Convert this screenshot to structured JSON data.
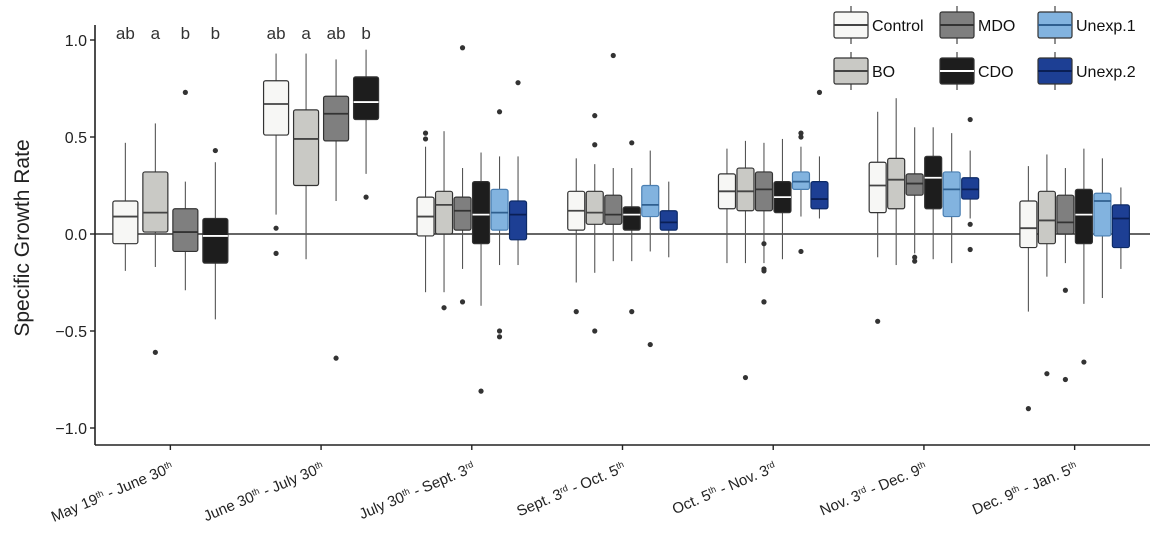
{
  "chart_data": {
    "type": "box",
    "ylabel": "Specific Growth Rate",
    "xlabel": "",
    "ylim": [
      -1.1,
      1.1
    ],
    "yticks": [
      1.0,
      0.5,
      0.0,
      -0.5,
      -1.0
    ],
    "ytick_labels": [
      "1.0",
      "0.5",
      "0.0",
      "−0.5",
      "−1.0"
    ],
    "reference_line": 0,
    "grid": false,
    "legend_position": "top-right",
    "categories": [
      {
        "pre": "May 19",
        "sup1": "th",
        "mid": " - June 30",
        "sup2": "th"
      },
      {
        "pre": "June 30",
        "sup1": "th",
        "mid": " - July 30",
        "sup2": "th"
      },
      {
        "pre": "July 30",
        "sup1": "th",
        "mid": " - Sept. 3",
        "sup2": "rd"
      },
      {
        "pre": "Sept. 3",
        "sup1": "rd",
        "mid": " - Oct. 5",
        "sup2": "th"
      },
      {
        "pre": "Oct. 5",
        "sup1": "th",
        "mid": " - Nov. 3",
        "sup2": "rd"
      },
      {
        "pre": "Nov. 3",
        "sup1": "rd",
        "mid": " - Dec. 9",
        "sup2": "th"
      },
      {
        "pre": "Dec. 9",
        "sup1": "th",
        "mid": " - Jan. 5",
        "sup2": "th"
      }
    ],
    "series": [
      {
        "name": "Control",
        "fill": "#f7f7f5",
        "median_color": "#444444"
      },
      {
        "name": "BO",
        "fill": "#c9c9c5",
        "median_color": "#444444"
      },
      {
        "name": "MDO",
        "fill": "#7f7f7f",
        "median_color": "#333333"
      },
      {
        "name": "CDO",
        "fill": "#1d1d1d",
        "median_color": "#ffffff"
      },
      {
        "name": "Unexp.1",
        "fill": "#82b3df",
        "median_color": "#2f5f8f"
      },
      {
        "name": "Unexp.2",
        "fill": "#1d3f94",
        "median_color": "#0a1f55"
      }
    ],
    "legend_order": [
      "Control",
      "MDO",
      "Unexp.1",
      "BO",
      "CDO",
      "Unexp.2"
    ],
    "groups": [
      {
        "boxes": [
          {
            "series": "Control",
            "min": -0.19,
            "q1": -0.05,
            "median": 0.09,
            "q3": 0.17,
            "max": 0.47,
            "outliers": []
          },
          {
            "series": "BO",
            "min": -0.17,
            "q1": 0.01,
            "median": 0.11,
            "q3": 0.32,
            "max": 0.57,
            "outliers": [
              -0.61
            ]
          },
          {
            "series": "MDO",
            "min": -0.29,
            "q1": -0.09,
            "median": 0.01,
            "q3": 0.13,
            "max": 0.27,
            "outliers": [
              0.73
            ]
          },
          {
            "series": "CDO",
            "min": -0.44,
            "q1": -0.15,
            "median": -0.01,
            "q3": 0.08,
            "max": 0.37,
            "outliers": [
              0.43
            ]
          }
        ],
        "labels": [
          "ab",
          "a",
          "b",
          "b"
        ]
      },
      {
        "boxes": [
          {
            "series": "Control",
            "min": 0.1,
            "q1": 0.51,
            "median": 0.67,
            "q3": 0.79,
            "max": 0.93,
            "outliers": [
              0.03,
              -0.1
            ]
          },
          {
            "series": "BO",
            "min": -0.13,
            "q1": 0.25,
            "median": 0.49,
            "q3": 0.64,
            "max": 0.93,
            "outliers": []
          },
          {
            "series": "MDO",
            "min": 0.17,
            "q1": 0.48,
            "median": 0.62,
            "q3": 0.71,
            "max": 0.9,
            "outliers": [
              -0.64
            ]
          },
          {
            "series": "CDO",
            "min": 0.31,
            "q1": 0.59,
            "median": 0.68,
            "q3": 0.81,
            "max": 0.95,
            "outliers": [
              0.19
            ]
          }
        ],
        "labels": [
          "ab",
          "a",
          "ab",
          "b"
        ]
      },
      {
        "boxes": [
          {
            "series": "Control",
            "min": -0.3,
            "q1": -0.01,
            "median": 0.09,
            "q3": 0.19,
            "max": 0.45,
            "outliers": [
              0.52,
              0.49
            ]
          },
          {
            "series": "BO",
            "min": -0.3,
            "q1": 0.0,
            "median": 0.15,
            "q3": 0.22,
            "max": 0.53,
            "outliers": [
              -0.38
            ]
          },
          {
            "series": "MDO",
            "min": -0.18,
            "q1": 0.02,
            "median": 0.12,
            "q3": 0.19,
            "max": 0.34,
            "outliers": [
              0.96,
              -0.35
            ]
          },
          {
            "series": "CDO",
            "min": -0.37,
            "q1": -0.05,
            "median": 0.1,
            "q3": 0.27,
            "max": 0.42,
            "outliers": [
              -0.81
            ]
          },
          {
            "series": "Unexp.1",
            "min": -0.16,
            "q1": 0.02,
            "median": 0.11,
            "q3": 0.23,
            "max": 0.4,
            "outliers": [
              0.63,
              -0.5,
              -0.53
            ]
          },
          {
            "series": "Unexp.2",
            "min": -0.16,
            "q1": -0.03,
            "median": 0.1,
            "q3": 0.17,
            "max": 0.4,
            "outliers": [
              0.78
            ]
          }
        ],
        "labels": []
      },
      {
        "boxes": [
          {
            "series": "Control",
            "min": -0.25,
            "q1": 0.02,
            "median": 0.12,
            "q3": 0.22,
            "max": 0.39,
            "outliers": [
              -0.4
            ]
          },
          {
            "series": "BO",
            "min": -0.2,
            "q1": 0.05,
            "median": 0.11,
            "q3": 0.22,
            "max": 0.36,
            "outliers": [
              0.61,
              0.46,
              -0.5
            ]
          },
          {
            "series": "MDO",
            "min": -0.14,
            "q1": 0.05,
            "median": 0.1,
            "q3": 0.2,
            "max": 0.34,
            "outliers": [
              0.92
            ]
          },
          {
            "series": "CDO",
            "min": -0.14,
            "q1": 0.02,
            "median": 0.1,
            "q3": 0.14,
            "max": 0.34,
            "outliers": [
              0.47,
              -0.4
            ]
          },
          {
            "series": "Unexp.1",
            "min": -0.09,
            "q1": 0.09,
            "median": 0.15,
            "q3": 0.25,
            "max": 0.43,
            "outliers": [
              -0.57
            ]
          },
          {
            "series": "Unexp.2",
            "min": -0.12,
            "q1": 0.02,
            "median": 0.06,
            "q3": 0.12,
            "max": 0.27,
            "outliers": []
          }
        ],
        "labels": []
      },
      {
        "boxes": [
          {
            "series": "Control",
            "min": -0.15,
            "q1": 0.13,
            "median": 0.22,
            "q3": 0.31,
            "max": 0.44,
            "outliers": []
          },
          {
            "series": "BO",
            "min": -0.15,
            "q1": 0.12,
            "median": 0.22,
            "q3": 0.34,
            "max": 0.48,
            "outliers": [
              -0.74
            ]
          },
          {
            "series": "MDO",
            "min": -0.15,
            "q1": 0.12,
            "median": 0.23,
            "q3": 0.32,
            "max": 0.47,
            "outliers": [
              -0.05,
              -0.18,
              -0.19,
              -0.35,
              -0.35
            ]
          },
          {
            "series": "CDO",
            "min": -0.13,
            "q1": 0.11,
            "median": 0.19,
            "q3": 0.27,
            "max": 0.49,
            "outliers": []
          },
          {
            "series": "Unexp.1",
            "min": 0.09,
            "q1": 0.23,
            "median": 0.27,
            "q3": 0.32,
            "max": 0.45,
            "outliers": [
              0.52,
              0.5,
              -0.09
            ]
          },
          {
            "series": "Unexp.2",
            "min": 0.08,
            "q1": 0.13,
            "median": 0.18,
            "q3": 0.27,
            "max": 0.4,
            "outliers": [
              0.73
            ]
          }
        ],
        "labels": []
      },
      {
        "boxes": [
          {
            "series": "Control",
            "min": -0.12,
            "q1": 0.11,
            "median": 0.25,
            "q3": 0.37,
            "max": 0.63,
            "outliers": [
              -0.45
            ]
          },
          {
            "series": "BO",
            "min": -0.16,
            "q1": 0.13,
            "median": 0.28,
            "q3": 0.39,
            "max": 0.7,
            "outliers": []
          },
          {
            "series": "MDO",
            "min": -0.1,
            "q1": 0.2,
            "median": 0.26,
            "q3": 0.31,
            "max": 0.55,
            "outliers": [
              -0.12,
              -0.14
            ]
          },
          {
            "series": "CDO",
            "min": -0.13,
            "q1": 0.13,
            "median": 0.29,
            "q3": 0.4,
            "max": 0.55,
            "outliers": []
          },
          {
            "series": "Unexp.1",
            "min": -0.15,
            "q1": 0.09,
            "median": 0.23,
            "q3": 0.32,
            "max": 0.52,
            "outliers": []
          },
          {
            "series": "Unexp.2",
            "min": 0.08,
            "q1": 0.18,
            "median": 0.23,
            "q3": 0.29,
            "max": 0.43,
            "outliers": [
              0.59,
              0.05,
              -0.08
            ]
          }
        ],
        "labels": []
      },
      {
        "boxes": [
          {
            "series": "Control",
            "min": -0.4,
            "q1": -0.07,
            "median": 0.03,
            "q3": 0.17,
            "max": 0.35,
            "outliers": [
              -0.9
            ]
          },
          {
            "series": "BO",
            "min": -0.22,
            "q1": -0.05,
            "median": 0.07,
            "q3": 0.22,
            "max": 0.41,
            "outliers": [
              -0.72
            ]
          },
          {
            "series": "MDO",
            "min": -0.15,
            "q1": 0.0,
            "median": 0.06,
            "q3": 0.2,
            "max": 0.34,
            "outliers": [
              -0.29,
              -0.75
            ]
          },
          {
            "series": "CDO",
            "min": -0.36,
            "q1": -0.05,
            "median": 0.1,
            "q3": 0.23,
            "max": 0.44,
            "outliers": [
              -0.66
            ]
          },
          {
            "series": "Unexp.1",
            "min": -0.33,
            "q1": -0.01,
            "median": 0.17,
            "q3": 0.21,
            "max": 0.39,
            "outliers": []
          },
          {
            "series": "Unexp.2",
            "min": -0.18,
            "q1": -0.07,
            "median": 0.08,
            "q3": 0.15,
            "max": 0.24,
            "outliers": []
          }
        ],
        "labels": []
      }
    ]
  }
}
